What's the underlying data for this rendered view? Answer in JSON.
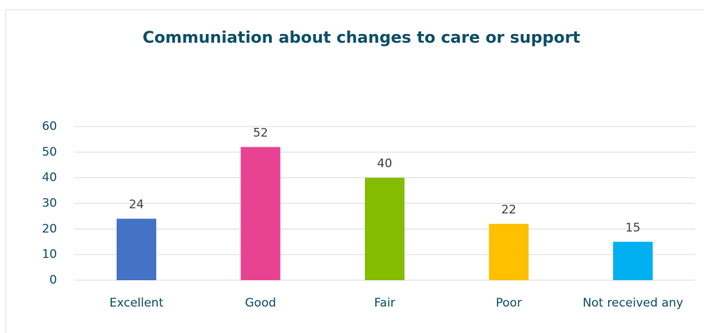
{
  "chart_data": {
    "type": "bar",
    "title": "Communiation about changes to care or support",
    "categories": [
      "Excellent",
      "Good",
      "Fair",
      "Poor",
      "Not received any"
    ],
    "values": [
      24,
      52,
      40,
      22,
      15
    ],
    "colors": [
      "#4472c4",
      "#e84393",
      "#84bd00",
      "#ffc000",
      "#00b0f0"
    ],
    "ylim": [
      0,
      60
    ],
    "yticks": [
      0,
      10,
      20,
      30,
      40,
      50,
      60
    ],
    "grid": true
  }
}
